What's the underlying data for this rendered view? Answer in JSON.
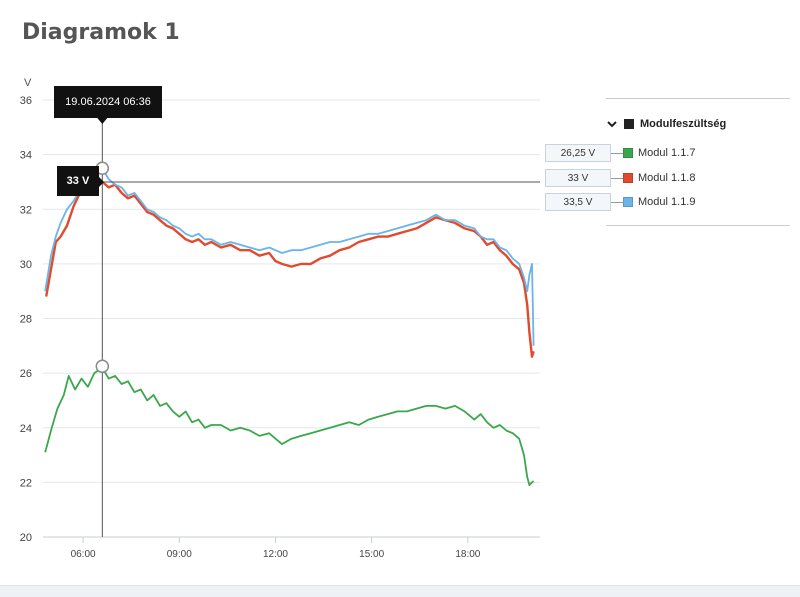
{
  "page": {
    "title": "Diagramok 1"
  },
  "chart_data": {
    "type": "line",
    "unit_label": "V",
    "ylim": [
      20,
      36
    ],
    "y_ticks": [
      20,
      22,
      24,
      26,
      28,
      30,
      32,
      34,
      36
    ],
    "x_hour_range": [
      4.75,
      20.25
    ],
    "x_ticks": [
      {
        "label": "06:00",
        "hour": 6
      },
      {
        "label": "09:00",
        "hour": 9
      },
      {
        "label": "12:00",
        "hour": 12
      },
      {
        "label": "15:00",
        "hour": 15
      },
      {
        "label": "18:00",
        "hour": 18
      }
    ],
    "grid": true,
    "legend_group": "Modulfeszültség",
    "series": [
      {
        "name": "Modul 1.1.7",
        "color": "#3aa84a",
        "hover_value": "26,25 V",
        "points": [
          [
            4.82,
            23.1
          ],
          [
            5.0,
            23.9
          ],
          [
            5.2,
            24.7
          ],
          [
            5.4,
            25.2
          ],
          [
            5.55,
            25.9
          ],
          [
            5.75,
            25.4
          ],
          [
            5.95,
            25.8
          ],
          [
            6.15,
            25.5
          ],
          [
            6.35,
            26.0
          ],
          [
            6.6,
            26.2
          ],
          [
            6.8,
            25.8
          ],
          [
            7.0,
            25.9
          ],
          [
            7.2,
            25.6
          ],
          [
            7.4,
            25.7
          ],
          [
            7.6,
            25.3
          ],
          [
            7.8,
            25.4
          ],
          [
            8.0,
            25.0
          ],
          [
            8.2,
            25.2
          ],
          [
            8.4,
            24.8
          ],
          [
            8.6,
            24.9
          ],
          [
            8.8,
            24.6
          ],
          [
            9.0,
            24.4
          ],
          [
            9.2,
            24.6
          ],
          [
            9.4,
            24.2
          ],
          [
            9.6,
            24.3
          ],
          [
            9.8,
            24.0
          ],
          [
            10.0,
            24.1
          ],
          [
            10.3,
            24.1
          ],
          [
            10.6,
            23.9
          ],
          [
            10.9,
            24.0
          ],
          [
            11.2,
            23.9
          ],
          [
            11.5,
            23.7
          ],
          [
            11.8,
            23.8
          ],
          [
            12.0,
            23.6
          ],
          [
            12.2,
            23.4
          ],
          [
            12.5,
            23.6
          ],
          [
            12.8,
            23.7
          ],
          [
            13.1,
            23.8
          ],
          [
            13.4,
            23.9
          ],
          [
            13.7,
            24.0
          ],
          [
            14.0,
            24.1
          ],
          [
            14.3,
            24.2
          ],
          [
            14.6,
            24.1
          ],
          [
            14.9,
            24.3
          ],
          [
            15.2,
            24.4
          ],
          [
            15.5,
            24.5
          ],
          [
            15.8,
            24.6
          ],
          [
            16.1,
            24.6
          ],
          [
            16.4,
            24.7
          ],
          [
            16.7,
            24.8
          ],
          [
            17.0,
            24.8
          ],
          [
            17.3,
            24.7
          ],
          [
            17.6,
            24.8
          ],
          [
            17.9,
            24.6
          ],
          [
            18.2,
            24.3
          ],
          [
            18.4,
            24.5
          ],
          [
            18.6,
            24.2
          ],
          [
            18.8,
            24.0
          ],
          [
            19.0,
            24.1
          ],
          [
            19.2,
            23.9
          ],
          [
            19.4,
            23.8
          ],
          [
            19.6,
            23.6
          ],
          [
            19.75,
            23.0
          ],
          [
            19.85,
            22.2
          ],
          [
            19.92,
            21.9
          ],
          [
            20.0,
            22.0
          ],
          [
            20.05,
            22.05
          ]
        ]
      },
      {
        "name": "Modul 1.1.8",
        "color": "#e24a2e",
        "hover_value": "33 V",
        "points": [
          [
            4.85,
            28.8
          ],
          [
            5.0,
            29.8
          ],
          [
            5.15,
            30.8
          ],
          [
            5.3,
            31.0
          ],
          [
            5.5,
            31.4
          ],
          [
            5.7,
            32.1
          ],
          [
            5.9,
            32.6
          ],
          [
            6.1,
            32.7
          ],
          [
            6.3,
            33.0
          ],
          [
            6.6,
            33.0
          ],
          [
            6.8,
            32.8
          ],
          [
            7.0,
            32.9
          ],
          [
            7.2,
            32.6
          ],
          [
            7.4,
            32.4
          ],
          [
            7.6,
            32.5
          ],
          [
            7.8,
            32.2
          ],
          [
            8.0,
            31.9
          ],
          [
            8.2,
            31.8
          ],
          [
            8.4,
            31.6
          ],
          [
            8.6,
            31.4
          ],
          [
            8.8,
            31.3
          ],
          [
            9.0,
            31.1
          ],
          [
            9.2,
            30.9
          ],
          [
            9.4,
            30.8
          ],
          [
            9.6,
            30.9
          ],
          [
            9.8,
            30.7
          ],
          [
            10.0,
            30.8
          ],
          [
            10.3,
            30.6
          ],
          [
            10.6,
            30.7
          ],
          [
            10.9,
            30.5
          ],
          [
            11.2,
            30.5
          ],
          [
            11.5,
            30.3
          ],
          [
            11.8,
            30.4
          ],
          [
            12.0,
            30.1
          ],
          [
            12.2,
            30.0
          ],
          [
            12.5,
            29.9
          ],
          [
            12.8,
            30.0
          ],
          [
            13.1,
            30.0
          ],
          [
            13.4,
            30.2
          ],
          [
            13.7,
            30.3
          ],
          [
            14.0,
            30.5
          ],
          [
            14.3,
            30.6
          ],
          [
            14.6,
            30.8
          ],
          [
            14.9,
            30.9
          ],
          [
            15.2,
            31.0
          ],
          [
            15.5,
            31.0
          ],
          [
            15.8,
            31.1
          ],
          [
            16.1,
            31.2
          ],
          [
            16.4,
            31.3
          ],
          [
            16.7,
            31.5
          ],
          [
            17.0,
            31.7
          ],
          [
            17.3,
            31.6
          ],
          [
            17.6,
            31.5
          ],
          [
            17.9,
            31.3
          ],
          [
            18.2,
            31.2
          ],
          [
            18.4,
            31.0
          ],
          [
            18.6,
            30.7
          ],
          [
            18.8,
            30.8
          ],
          [
            19.0,
            30.5
          ],
          [
            19.2,
            30.3
          ],
          [
            19.4,
            30.0
          ],
          [
            19.6,
            29.8
          ],
          [
            19.75,
            29.3
          ],
          [
            19.85,
            28.5
          ],
          [
            19.92,
            27.5
          ],
          [
            20.0,
            26.6
          ],
          [
            20.05,
            26.8
          ]
        ]
      },
      {
        "name": "Modul 1.1.9",
        "color": "#6ab4e8",
        "hover_value": "33,5 V",
        "points": [
          [
            4.82,
            29.0
          ],
          [
            5.0,
            30.3
          ],
          [
            5.15,
            31.0
          ],
          [
            5.3,
            31.5
          ],
          [
            5.5,
            32.0
          ],
          [
            5.7,
            32.3
          ],
          [
            5.9,
            32.7
          ],
          [
            6.1,
            33.0
          ],
          [
            6.3,
            33.3
          ],
          [
            6.6,
            33.5
          ],
          [
            6.8,
            33.1
          ],
          [
            7.0,
            32.9
          ],
          [
            7.2,
            32.8
          ],
          [
            7.4,
            32.5
          ],
          [
            7.6,
            32.6
          ],
          [
            7.8,
            32.3
          ],
          [
            8.0,
            32.0
          ],
          [
            8.2,
            31.9
          ],
          [
            8.4,
            31.7
          ],
          [
            8.6,
            31.6
          ],
          [
            8.8,
            31.4
          ],
          [
            9.0,
            31.3
          ],
          [
            9.2,
            31.1
          ],
          [
            9.4,
            31.0
          ],
          [
            9.6,
            31.1
          ],
          [
            9.8,
            30.9
          ],
          [
            10.0,
            30.9
          ],
          [
            10.3,
            30.7
          ],
          [
            10.6,
            30.8
          ],
          [
            10.9,
            30.7
          ],
          [
            11.2,
            30.6
          ],
          [
            11.5,
            30.5
          ],
          [
            11.8,
            30.6
          ],
          [
            12.0,
            30.5
          ],
          [
            12.2,
            30.4
          ],
          [
            12.5,
            30.5
          ],
          [
            12.8,
            30.5
          ],
          [
            13.1,
            30.6
          ],
          [
            13.4,
            30.7
          ],
          [
            13.7,
            30.8
          ],
          [
            14.0,
            30.8
          ],
          [
            14.3,
            30.9
          ],
          [
            14.6,
            31.0
          ],
          [
            14.9,
            31.1
          ],
          [
            15.2,
            31.1
          ],
          [
            15.5,
            31.2
          ],
          [
            15.8,
            31.3
          ],
          [
            16.1,
            31.4
          ],
          [
            16.4,
            31.5
          ],
          [
            16.7,
            31.6
          ],
          [
            17.0,
            31.8
          ],
          [
            17.3,
            31.6
          ],
          [
            17.6,
            31.6
          ],
          [
            17.9,
            31.4
          ],
          [
            18.2,
            31.3
          ],
          [
            18.4,
            31.0
          ],
          [
            18.6,
            30.9
          ],
          [
            18.8,
            30.9
          ],
          [
            19.0,
            30.6
          ],
          [
            19.2,
            30.5
          ],
          [
            19.4,
            30.2
          ],
          [
            19.6,
            30.0
          ],
          [
            19.75,
            29.5
          ],
          [
            19.85,
            29.0
          ],
          [
            19.92,
            29.6
          ],
          [
            20.0,
            30.0
          ],
          [
            20.05,
            27.0
          ]
        ]
      }
    ],
    "crosshair": {
      "hour": 6.6,
      "date_label": "19.06.2024 06:36",
      "value_label": "33 V",
      "value": 33
    }
  }
}
